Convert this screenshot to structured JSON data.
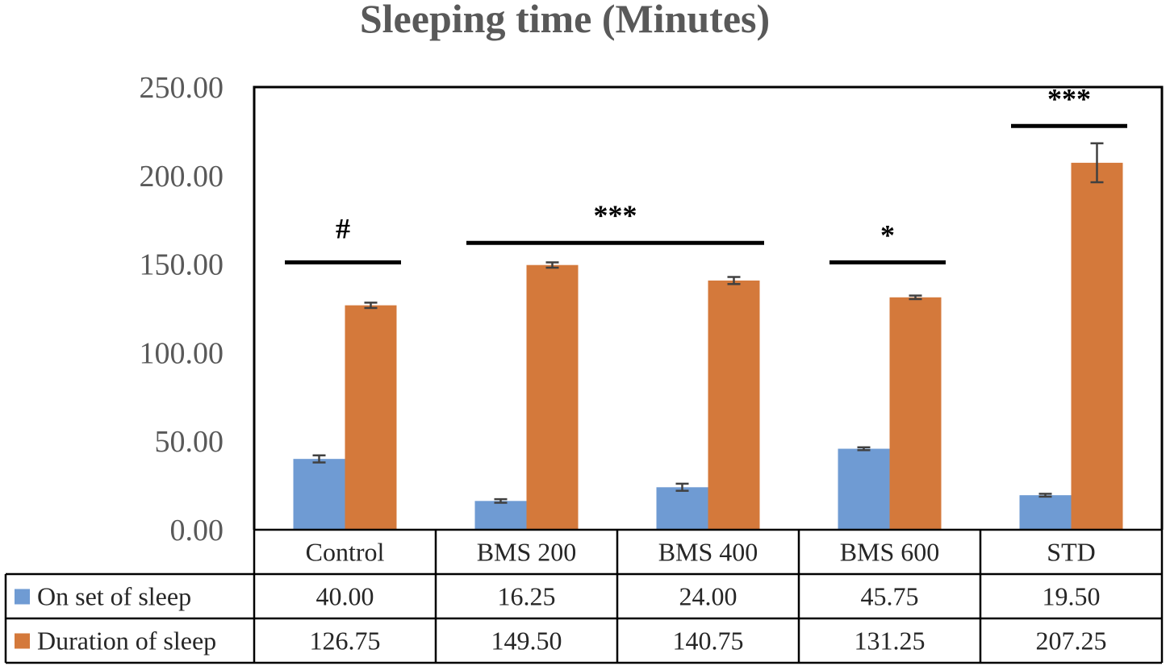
{
  "chart_data": {
    "type": "bar",
    "title": "Sleeping time (Minutes)",
    "categories": [
      "Control",
      "BMS 200",
      "BMS 400",
      "BMS 600",
      "STD"
    ],
    "series": [
      {
        "name": "On set of sleep",
        "color": "#6f9bd3",
        "values": [
          40.0,
          16.25,
          24.0,
          45.75,
          19.5
        ],
        "errors": [
          2.0,
          1.0,
          2.0,
          0.8,
          0.8
        ]
      },
      {
        "name": "Duration of sleep",
        "color": "#d4793b",
        "values": [
          126.75,
          149.5,
          140.75,
          131.25,
          207.25
        ],
        "errors": [
          1.5,
          1.5,
          2.0,
          1.0,
          11.0
        ]
      }
    ],
    "data_table": {
      "rows": [
        {
          "label": "On set of sleep",
          "values": [
            "40.00",
            "16.25",
            "24.00",
            "45.75",
            "19.50"
          ]
        },
        {
          "label": "Duration of sleep",
          "values": [
            "126.75",
            "149.50",
            "140.75",
            "131.25",
            "207.25"
          ]
        }
      ]
    },
    "ylim": [
      0,
      250
    ],
    "yticks": [
      0,
      50,
      100,
      150,
      200,
      250
    ],
    "ytick_labels": [
      "0.00",
      "50.00",
      "100.00",
      "150.00",
      "200.00",
      "250.00"
    ],
    "significance": [
      {
        "label": "#",
        "from": 0,
        "to": 0,
        "level": 151
      },
      {
        "label": "***",
        "from": 1,
        "to": 2,
        "level": 162
      },
      {
        "label": "*",
        "from": 3,
        "to": 3,
        "level": 151
      },
      {
        "label": "***",
        "from": 4,
        "to": 4,
        "level": 228
      }
    ],
    "grid": false,
    "legend": "in-table"
  }
}
